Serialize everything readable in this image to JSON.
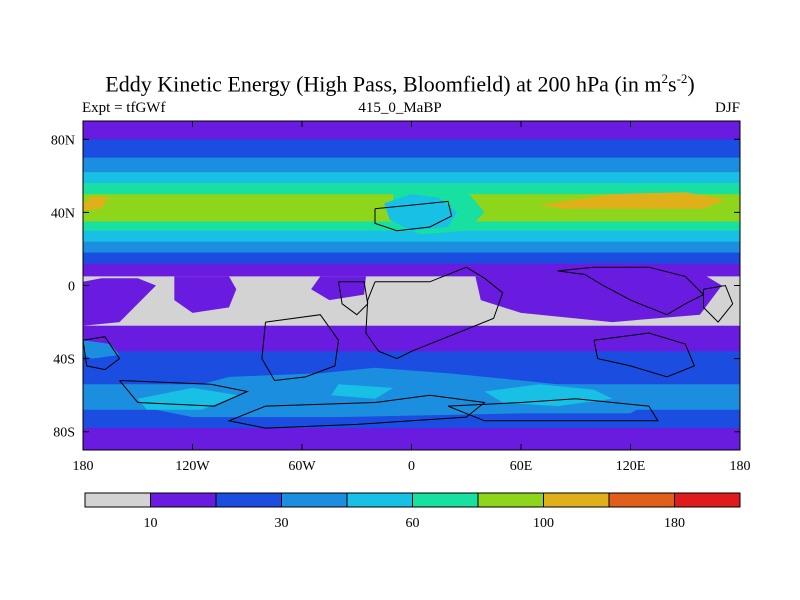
{
  "header": {
    "title_main": "Eddy Kinetic Energy (High Pass, Bloomfield) at 200 hPa (in m",
    "title_sup1": "2",
    "title_mid": "s",
    "title_sup2": "-2",
    "title_end": ")",
    "left_label": "Expt = tfGWf",
    "center_label": "415_0_MaBP",
    "right_label": "DJF"
  },
  "chart_data": {
    "type": "heatmap",
    "xlim": [
      -180,
      180
    ],
    "ylim": [
      -90,
      90
    ],
    "x_ticks": [
      {
        "value": -180,
        "label": "180"
      },
      {
        "value": -120,
        "label": "120W"
      },
      {
        "value": -60,
        "label": "60W"
      },
      {
        "value": 0,
        "label": "0"
      },
      {
        "value": 60,
        "label": "60E"
      },
      {
        "value": 120,
        "label": "120E"
      },
      {
        "value": 180,
        "label": "180"
      }
    ],
    "y_ticks": [
      {
        "value": 80,
        "label": "80N"
      },
      {
        "value": 40,
        "label": "40N"
      },
      {
        "value": 0,
        "label": "0"
      },
      {
        "value": -40,
        "label": "40S"
      },
      {
        "value": -80,
        "label": "80S"
      }
    ],
    "colorbar": {
      "colors": [
        "#d3d3d3",
        "#6a1be0",
        "#1b4de0",
        "#1b8ee0",
        "#18c0e6",
        "#18e0a0",
        "#8ed61b",
        "#e0b01b",
        "#e0601b",
        "#e01b1b"
      ],
      "labels": [
        {
          "after_box": 1,
          "text": "10"
        },
        {
          "after_box": 3,
          "text": "30"
        },
        {
          "after_box": 5,
          "text": "60"
        },
        {
          "after_box": 7,
          "text": "100"
        },
        {
          "after_box": 9,
          "text": "180"
        }
      ]
    },
    "bands": [
      {
        "lat": [
          80,
          90
        ],
        "color": "#6a1be0"
      },
      {
        "lat": [
          70,
          80
        ],
        "color": "#1b4de0"
      },
      {
        "lat": [
          62,
          70
        ],
        "color": "#1b8ee0"
      },
      {
        "lat": [
          56,
          62
        ],
        "color": "#18c0e6"
      },
      {
        "lat": [
          50,
          56
        ],
        "color": "#18e0a0"
      },
      {
        "lat": [
          35,
          50
        ],
        "color": "#8ed61b"
      },
      {
        "lat": [
          30,
          35
        ],
        "color": "#18e0a0"
      },
      {
        "lat": [
          24,
          30
        ],
        "color": "#18c0e6"
      },
      {
        "lat": [
          18,
          24
        ],
        "color": "#1b8ee0"
      },
      {
        "lat": [
          12,
          18
        ],
        "color": "#1b4de0"
      },
      {
        "lat": [
          5,
          12
        ],
        "color": "#6a1be0"
      },
      {
        "lat": [
          -22,
          5
        ],
        "color": "#d3d3d3"
      },
      {
        "lat": [
          -36,
          -22
        ],
        "color": "#6a1be0"
      },
      {
        "lat": [
          -54,
          -36
        ],
        "color": "#1b4de0"
      },
      {
        "lat": [
          -68,
          -54
        ],
        "color": "#1b8ee0"
      },
      {
        "lat": [
          -78,
          -68
        ],
        "color": "#1b4de0"
      },
      {
        "lat": [
          -90,
          -78
        ],
        "color": "#6a1be0"
      }
    ],
    "blobs": [
      {
        "color": "#e0b01b",
        "points": [
          [
            -180,
            45
          ],
          [
            -174,
            49
          ],
          [
            -166,
            48
          ],
          [
            -170,
            42
          ],
          [
            -180,
            41
          ]
        ]
      },
      {
        "color": "#e0b01b",
        "points": [
          [
            70,
            44
          ],
          [
            110,
            50
          ],
          [
            150,
            51
          ],
          [
            172,
            47
          ],
          [
            160,
            42
          ],
          [
            120,
            42
          ],
          [
            84,
            42
          ]
        ]
      },
      {
        "color": "#18e0a0",
        "points": [
          [
            -10,
            50
          ],
          [
            30,
            52
          ],
          [
            40,
            40
          ],
          [
            30,
            30
          ],
          [
            5,
            28
          ],
          [
            -10,
            34
          ]
        ]
      },
      {
        "color": "#18c0e6",
        "points": [
          [
            -15,
            45
          ],
          [
            0,
            50
          ],
          [
            15,
            48
          ],
          [
            25,
            40
          ],
          [
            20,
            32
          ],
          [
            0,
            30
          ],
          [
            -12,
            36
          ]
        ]
      },
      {
        "color": "#6a1be0",
        "points": [
          [
            -180,
            2
          ],
          [
            -170,
            4
          ],
          [
            -150,
            4
          ],
          [
            -140,
            0
          ],
          [
            -150,
            -10
          ],
          [
            -160,
            -20
          ],
          [
            -180,
            -22
          ]
        ]
      },
      {
        "color": "#6a1be0",
        "points": [
          [
            -130,
            5
          ],
          [
            -100,
            5
          ],
          [
            -96,
            -2
          ],
          [
            -100,
            -12
          ],
          [
            -120,
            -15
          ],
          [
            -130,
            -8
          ]
        ]
      },
      {
        "color": "#6a1be0",
        "points": [
          [
            -50,
            5
          ],
          [
            -25,
            5
          ],
          [
            -26,
            -5
          ],
          [
            -45,
            -8
          ],
          [
            -55,
            -2
          ]
        ]
      },
      {
        "color": "#6a1be0",
        "points": [
          [
            35,
            5
          ],
          [
            120,
            8
          ],
          [
            140,
            5
          ],
          [
            160,
            6
          ],
          [
            170,
            0
          ],
          [
            158,
            -16
          ],
          [
            110,
            -20
          ],
          [
            60,
            -15
          ],
          [
            38,
            -8
          ]
        ]
      },
      {
        "color": "#d3d3d3",
        "points": [
          [
            172,
            2
          ],
          [
            180,
            0
          ],
          [
            180,
            -10
          ],
          [
            175,
            -6
          ]
        ]
      },
      {
        "color": "#1b8ee0",
        "points": [
          [
            -180,
            -30
          ],
          [
            -165,
            -32
          ],
          [
            -160,
            -38
          ],
          [
            -175,
            -40
          ],
          [
            -180,
            -38
          ]
        ]
      },
      {
        "color": "#1b8ee0",
        "points": [
          [
            -100,
            -50
          ],
          [
            -50,
            -48
          ],
          [
            -20,
            -45
          ],
          [
            20,
            -48
          ],
          [
            60,
            -52
          ],
          [
            80,
            -54
          ],
          [
            110,
            -55
          ],
          [
            140,
            -58
          ],
          [
            120,
            -70
          ],
          [
            60,
            -70
          ],
          [
            -40,
            -72
          ],
          [
            -120,
            -72
          ],
          [
            -150,
            -66
          ],
          [
            -130,
            -58
          ]
        ]
      },
      {
        "color": "#18c0e6",
        "points": [
          [
            -150,
            -62
          ],
          [
            -120,
            -56
          ],
          [
            -95,
            -60
          ],
          [
            -115,
            -68
          ],
          [
            -145,
            -68
          ]
        ]
      },
      {
        "color": "#18c0e6",
        "points": [
          [
            40,
            -58
          ],
          [
            70,
            -54
          ],
          [
            100,
            -57
          ],
          [
            110,
            -62
          ],
          [
            80,
            -66
          ],
          [
            50,
            -64
          ]
        ]
      },
      {
        "color": "#18c0e6",
        "points": [
          [
            -40,
            -54
          ],
          [
            -10,
            -56
          ],
          [
            -20,
            -62
          ],
          [
            -44,
            -60
          ]
        ]
      }
    ],
    "coastlines": [
      [
        [
          -20,
          42
        ],
        [
          0,
          44
        ],
        [
          20,
          46
        ],
        [
          22,
          38
        ],
        [
          10,
          32
        ],
        [
          -8,
          30
        ],
        [
          -20,
          34
        ],
        [
          -20,
          42
        ]
      ],
      [
        [
          -40,
          2
        ],
        [
          -26,
          2
        ],
        [
          -24,
          -10
        ],
        [
          -30,
          -16
        ],
        [
          -38,
          -10
        ],
        [
          -40,
          2
        ]
      ],
      [
        [
          -80,
          -20
        ],
        [
          -50,
          -16
        ],
        [
          -40,
          -30
        ],
        [
          -42,
          -44
        ],
        [
          -58,
          -50
        ],
        [
          -75,
          -52
        ],
        [
          -82,
          -40
        ],
        [
          -80,
          -20
        ]
      ],
      [
        [
          -20,
          2
        ],
        [
          10,
          2
        ],
        [
          30,
          10
        ],
        [
          40,
          4
        ],
        [
          50,
          -4
        ],
        [
          45,
          -18
        ],
        [
          30,
          -24
        ],
        [
          15,
          -30
        ],
        [
          0,
          -36
        ],
        [
          -8,
          -40
        ],
        [
          -18,
          -36
        ],
        [
          -25,
          -26
        ],
        [
          -24,
          -8
        ],
        [
          -20,
          2
        ]
      ],
      [
        [
          80,
          8
        ],
        [
          95,
          6
        ],
        [
          105,
          0
        ],
        [
          120,
          -8
        ],
        [
          140,
          -16
        ],
        [
          150,
          -10
        ],
        [
          160,
          -5
        ],
        [
          150,
          5
        ],
        [
          130,
          10
        ],
        [
          100,
          10
        ],
        [
          80,
          8
        ]
      ],
      [
        [
          100,
          -30
        ],
        [
          130,
          -26
        ],
        [
          150,
          -32
        ],
        [
          155,
          -44
        ],
        [
          140,
          -50
        ],
        [
          120,
          -44
        ],
        [
          102,
          -40
        ],
        [
          100,
          -30
        ]
      ],
      [
        [
          160,
          -2
        ],
        [
          172,
          0
        ],
        [
          176,
          -10
        ],
        [
          168,
          -20
        ],
        [
          160,
          -12
        ],
        [
          160,
          -2
        ]
      ],
      [
        [
          -180,
          -30
        ],
        [
          -168,
          -28
        ],
        [
          -160,
          -40
        ],
        [
          -168,
          -46
        ],
        [
          -178,
          -44
        ],
        [
          -180,
          -30
        ]
      ],
      [
        [
          -160,
          -52
        ],
        [
          -110,
          -54
        ],
        [
          -90,
          -58
        ],
        [
          -108,
          -66
        ],
        [
          -150,
          -64
        ],
        [
          -160,
          -52
        ]
      ],
      [
        [
          -80,
          -66
        ],
        [
          -20,
          -64
        ],
        [
          10,
          -60
        ],
        [
          40,
          -64
        ],
        [
          30,
          -72
        ],
        [
          -30,
          -76
        ],
        [
          -80,
          -78
        ],
        [
          -100,
          -74
        ],
        [
          -80,
          -66
        ]
      ],
      [
        [
          20,
          -66
        ],
        [
          60,
          -64
        ],
        [
          90,
          -62
        ],
        [
          130,
          -66
        ],
        [
          135,
          -74
        ],
        [
          90,
          -74
        ],
        [
          40,
          -74
        ],
        [
          20,
          -66
        ]
      ]
    ]
  }
}
